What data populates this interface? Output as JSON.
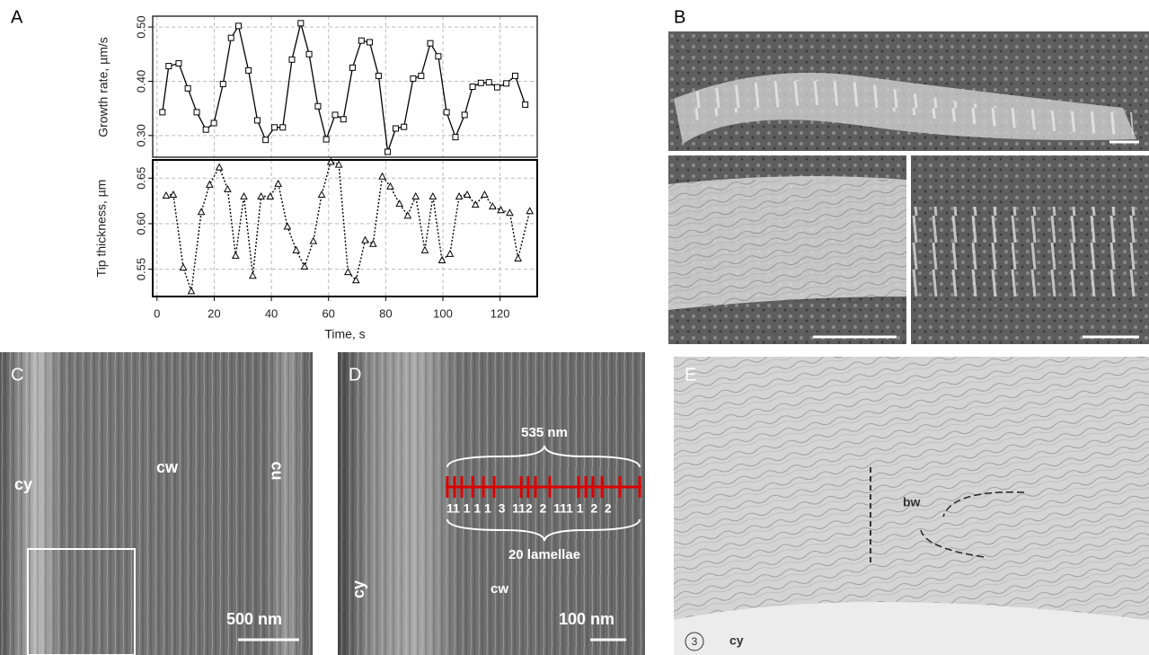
{
  "chart_data": [
    {
      "type": "line",
      "ylabel": "Growth rate, µm/s",
      "color": "#000000",
      "marker": "square",
      "line_style": "solid",
      "xlim": [
        -1.5,
        133
      ],
      "xticks": [
        0,
        20,
        40,
        60,
        80,
        100,
        120
      ],
      "xtick_labels": false,
      "grid": true,
      "ylim": [
        0.26,
        0.52
      ],
      "yticks": [
        {
          "value": 0.3,
          "label": "0.30"
        },
        {
          "value": 0.4,
          "label": "0.40"
        },
        {
          "value": 0.5,
          "label": "0.50"
        }
      ],
      "x": [
        1.9,
        4.1,
        7.6,
        10.8,
        13.9,
        17.1,
        19.9,
        23.1,
        25.9,
        28.5,
        32.0,
        35.1,
        38.0,
        41.1,
        44.0,
        47.2,
        50.3,
        53.2,
        56.3,
        59.2,
        62.3,
        65.2,
        68.4,
        71.5,
        74.4,
        77.5,
        80.7,
        83.5,
        86.4,
        89.6,
        92.4,
        95.6,
        98.4,
        101.3,
        104.4,
        107.6,
        110.4,
        113.3,
        116.1,
        119.0,
        122.2,
        125.3,
        128.8
      ],
      "values": [
        0.343,
        0.428,
        0.433,
        0.387,
        0.343,
        0.311,
        0.323,
        0.395,
        0.48,
        0.502,
        0.42,
        0.328,
        0.292,
        0.315,
        0.315,
        0.44,
        0.507,
        0.45,
        0.354,
        0.293,
        0.338,
        0.33,
        0.425,
        0.475,
        0.472,
        0.41,
        0.27,
        0.313,
        0.316,
        0.405,
        0.41,
        0.47,
        0.446,
        0.343,
        0.297,
        0.338,
        0.39,
        0.397,
        0.398,
        0.389,
        0.396,
        0.41,
        0.357
      ]
    },
    {
      "type": "line",
      "ylabel": "Tip thickness, µm",
      "xlabel": "Time, s",
      "color": "#000000",
      "marker": "triangle",
      "line_style": "dotted",
      "xlim": [
        -1.5,
        133
      ],
      "xticks": [
        0,
        20,
        40,
        60,
        80,
        100,
        120
      ],
      "xtick_labels": true,
      "grid": true,
      "ylim": [
        0.52,
        0.67
      ],
      "yticks": [
        0.55,
        {
          "value": 0.6,
          "label": "0.60"
        },
        0.65
      ],
      "x": [
        3.2,
        5.7,
        9.2,
        12.0,
        15.5,
        18.4,
        21.8,
        24.7,
        27.5,
        30.4,
        33.5,
        36.4,
        39.6,
        42.4,
        45.6,
        48.7,
        51.6,
        54.7,
        57.6,
        60.8,
        63.6,
        66.8,
        69.6,
        72.8,
        75.6,
        78.8,
        81.6,
        84.8,
        87.7,
        90.5,
        93.7,
        96.5,
        99.7,
        102.5,
        105.7,
        108.5,
        111.4,
        114.6,
        117.4,
        120.3,
        123.4,
        126.3,
        130.4
      ],
      "values": [
        0.631,
        0.632,
        0.552,
        0.526,
        0.613,
        0.643,
        0.662,
        0.638,
        0.565,
        0.63,
        0.543,
        0.63,
        0.63,
        0.644,
        0.597,
        0.571,
        0.553,
        0.581,
        0.632,
        0.668,
        0.665,
        0.547,
        0.538,
        0.582,
        0.578,
        0.652,
        0.641,
        0.622,
        0.609,
        0.63,
        0.571,
        0.63,
        0.56,
        0.567,
        0.63,
        0.632,
        0.621,
        0.632,
        0.619,
        0.615,
        0.612,
        0.562,
        0.614
      ]
    }
  ],
  "figure": {
    "panel_labels": [
      "A",
      "B",
      "C",
      "D",
      "E"
    ],
    "panel_c": {
      "cy": "cy",
      "cw": "cw",
      "cu": "cu",
      "scale_bar": "500 nm"
    },
    "panel_d": {
      "top_span": "535 nm",
      "counts": "11 1 1 1  3  112  2  111 1  2  2",
      "bottom_span": "20 lamellae",
      "cy": "cy",
      "cw": "cw",
      "scale_bar": "100 nm"
    },
    "panel_e": {
      "number": "3",
      "bw": "bw",
      "cy": "cy"
    }
  }
}
